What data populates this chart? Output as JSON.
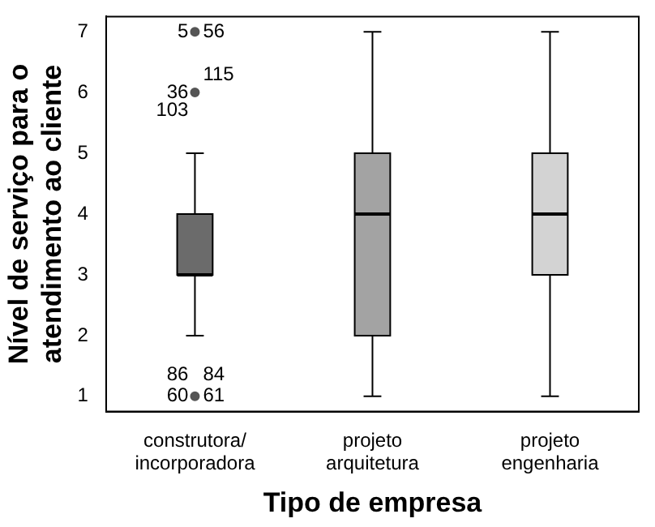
{
  "chart_data": {
    "type": "box",
    "xlabel": "Tipo de empresa",
    "ylabel": "Nível de serviço para o\natendimento ao cliente",
    "categories": [
      "construtora/\nincorporadora",
      "projeto\narquitetura",
      "projeto\nengenharia"
    ],
    "colors": [
      "#6b6b6b",
      "#a3a3a3",
      "#d3d3d3"
    ],
    "boxes": [
      {
        "low": 2,
        "q1": 3,
        "median": 3,
        "q3": 4,
        "high": 5,
        "outliers": [
          7,
          6,
          1
        ]
      },
      {
        "low": 1,
        "q1": 2,
        "median": 4,
        "q3": 5,
        "high": 7
      },
      {
        "low": 1,
        "q1": 3,
        "median": 4,
        "q3": 5,
        "high": 7
      }
    ],
    "ylim": [
      0.75,
      7.25
    ],
    "yticks": [
      1,
      2,
      3,
      4,
      5,
      6,
      7
    ],
    "grid": false,
    "legend": false,
    "annotations": [
      "5",
      "56",
      "36",
      "115",
      "103",
      "86",
      "84",
      "60",
      "61"
    ]
  }
}
